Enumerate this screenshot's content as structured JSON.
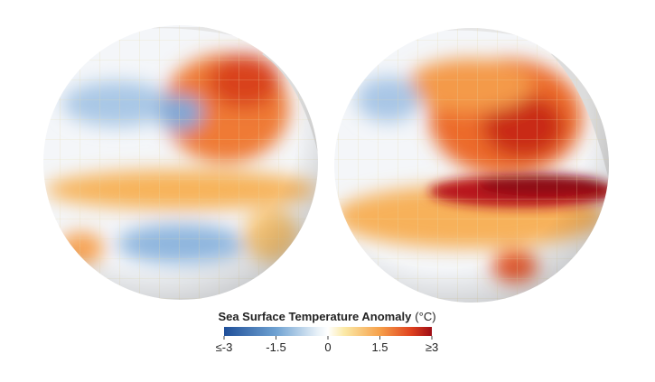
{
  "legend": {
    "title": "Sea Surface Temperature Anomaly",
    "unit": "(°C)",
    "range": [
      -3,
      3
    ],
    "ticks": [
      {
        "value": -3,
        "label": "≤-3"
      },
      -1.5,
      0,
      1.5,
      {
        "value": 3,
        "label": "≥3"
      }
    ]
  }
}
